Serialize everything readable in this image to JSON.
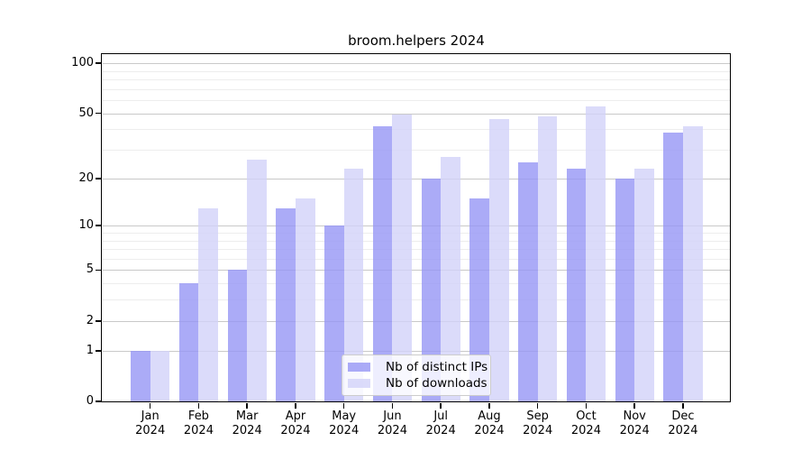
{
  "chart_data": {
    "type": "bar",
    "title": "broom.helpers 2024",
    "xlabel": "",
    "ylabel": "",
    "categories": [
      "Jan",
      "Feb",
      "Mar",
      "Apr",
      "May",
      "Jun",
      "Jul",
      "Aug",
      "Sep",
      "Oct",
      "Nov",
      "Dec"
    ],
    "year_label": "2024",
    "series": [
      {
        "name": "Nb of distinct IPs",
        "color": "#9696F5",
        "opacity": 0.8,
        "values": [
          1,
          4,
          5,
          13,
          10,
          42,
          20,
          15,
          25,
          23,
          20,
          38
        ]
      },
      {
        "name": "Nb of downloads",
        "color": "#D2D2F9",
        "opacity": 0.8,
        "values": [
          1,
          13,
          26,
          15,
          23,
          49,
          27,
          46,
          48,
          55,
          23,
          42
        ]
      }
    ],
    "yscale": "log1p",
    "ylim": [
      0,
      113
    ],
    "y_major_ticks": [
      100,
      50,
      20,
      10,
      5,
      2,
      1,
      0
    ],
    "y_minor_ticks": [
      3,
      4,
      6,
      7,
      8,
      9,
      30,
      40,
      60,
      70,
      80,
      90
    ],
    "grid": true,
    "legend_position": "lower center"
  },
  "colors": {
    "background": "#ffffff",
    "axis": "#000000",
    "grid_major": "#c9c9c9",
    "grid_minor": "#ededed",
    "legend_border": "#cccccc",
    "text": "#000000"
  }
}
